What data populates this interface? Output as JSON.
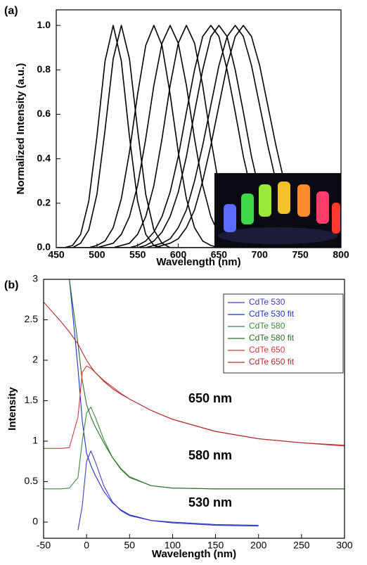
{
  "chart_data": [
    {
      "type": "line",
      "panel_label": "(a)",
      "x_label": "Wavelength (nm)",
      "y_label": "Normalized Intensity (a.u.)",
      "xlim": [
        450,
        800
      ],
      "xticks": [
        450,
        500,
        550,
        600,
        650,
        700,
        750,
        800
      ],
      "ylim": [
        0,
        1.07
      ],
      "yticks": [
        {
          "value": 0,
          "label": "0.0"
        },
        0.2,
        0.4,
        0.6,
        0.8,
        {
          "value": 1,
          "label": "1.0"
        }
      ],
      "x": [
        450,
        460,
        470,
        480,
        490,
        500,
        510,
        520,
        530,
        540,
        550,
        560,
        570,
        580,
        590,
        600,
        610,
        620,
        630,
        640,
        650,
        660,
        670,
        680,
        690,
        700,
        710,
        720,
        730,
        740,
        750,
        760,
        770,
        780,
        790,
        800
      ],
      "series": [
        {
          "color": "#000000",
          "values": [
            0,
            0,
            0.01,
            0.06,
            0.21,
            0.5,
            0.84,
            1,
            0.84,
            0.5,
            0.21,
            0.06,
            0.01,
            0,
            0,
            0,
            0,
            0,
            0,
            0,
            0,
            0,
            0,
            0,
            0,
            0,
            0,
            0,
            0,
            0,
            0,
            0,
            0,
            0,
            0,
            0
          ]
        },
        {
          "color": "#000000",
          "values": [
            0,
            0,
            0,
            0.02,
            0.08,
            0.24,
            0.53,
            0.85,
            1,
            0.85,
            0.53,
            0.24,
            0.08,
            0.02,
            0,
            0,
            0,
            0,
            0,
            0,
            0,
            0,
            0,
            0,
            0,
            0,
            0,
            0,
            0,
            0,
            0,
            0,
            0,
            0,
            0,
            0
          ]
        },
        {
          "color": "#000000",
          "values": [
            0,
            0,
            0,
            0,
            0,
            0.01,
            0.03,
            0.09,
            0.22,
            0.43,
            0.69,
            0.91,
            1,
            0.91,
            0.69,
            0.43,
            0.22,
            0.09,
            0.03,
            0.01,
            0,
            0,
            0,
            0,
            0,
            0,
            0,
            0,
            0,
            0,
            0,
            0,
            0,
            0,
            0,
            0
          ]
        },
        {
          "color": "#000000",
          "values": [
            0,
            0,
            0,
            0,
            0,
            0,
            0.01,
            0.02,
            0.06,
            0.14,
            0.28,
            0.49,
            0.73,
            0.92,
            1,
            0.92,
            0.73,
            0.49,
            0.28,
            0.14,
            0.06,
            0.02,
            0.01,
            0,
            0,
            0,
            0,
            0,
            0,
            0,
            0,
            0,
            0,
            0,
            0,
            0
          ]
        },
        {
          "color": "#000000",
          "values": [
            0,
            0,
            0,
            0,
            0,
            0,
            0,
            0,
            0.01,
            0.02,
            0.06,
            0.14,
            0.28,
            0.49,
            0.73,
            0.92,
            1,
            0.92,
            0.73,
            0.49,
            0.28,
            0.14,
            0.06,
            0.02,
            0.01,
            0,
            0,
            0,
            0,
            0,
            0,
            0,
            0,
            0,
            0,
            0
          ]
        },
        {
          "color": "#000000",
          "values": [
            0,
            0,
            0,
            0,
            0,
            0,
            0,
            0,
            0,
            0,
            0.01,
            0.03,
            0.07,
            0.14,
            0.25,
            0.41,
            0.61,
            0.8,
            0.95,
            1,
            0.95,
            0.8,
            0.61,
            0.41,
            0.25,
            0.14,
            0.07,
            0.03,
            0.01,
            0,
            0,
            0,
            0,
            0,
            0,
            0
          ]
        },
        {
          "color": "#000000",
          "values": [
            0,
            0,
            0,
            0,
            0,
            0,
            0,
            0,
            0,
            0,
            0,
            0.01,
            0.03,
            0.07,
            0.14,
            0.25,
            0.41,
            0.61,
            0.8,
            0.95,
            1,
            0.95,
            0.8,
            0.61,
            0.41,
            0.25,
            0.14,
            0.07,
            0.03,
            0.01,
            0,
            0,
            0,
            0,
            0,
            0
          ]
        },
        {
          "color": "#000000",
          "values": [
            0,
            0,
            0,
            0,
            0,
            0,
            0,
            0,
            0,
            0,
            0,
            0,
            0.01,
            0.02,
            0.04,
            0.09,
            0.17,
            0.3,
            0.46,
            0.64,
            0.82,
            0.95,
            1,
            0.95,
            0.82,
            0.64,
            0.46,
            0.3,
            0.17,
            0.09,
            0.04,
            0.02,
            0.01,
            0,
            0,
            0
          ]
        },
        {
          "color": "#000000",
          "values": [
            0,
            0,
            0,
            0,
            0,
            0,
            0,
            0,
            0,
            0,
            0,
            0,
            0,
            0.01,
            0.02,
            0.04,
            0.09,
            0.17,
            0.3,
            0.46,
            0.64,
            0.82,
            0.95,
            1,
            0.95,
            0.82,
            0.64,
            0.46,
            0.3,
            0.17,
            0.09,
            0.04,
            0.02,
            0.01,
            0,
            0
          ]
        }
      ]
    },
    {
      "type": "line",
      "panel_label": "(b)",
      "x_label": "Wavelength (nm)",
      "y_label": "Intensity",
      "xlim": [
        -50,
        300
      ],
      "xticks": [
        -50,
        0,
        50,
        100,
        150,
        200,
        250,
        300
      ],
      "ylim": [
        -0.2,
        3
      ],
      "yticks": [
        0,
        0.5,
        1,
        1.5,
        2,
        2.5,
        3
      ],
      "legend": "upper right",
      "annotations": [
        "650 nm",
        "580 nm",
        "530 nm"
      ],
      "x": [
        -50,
        -40,
        -30,
        -20,
        -10,
        -5,
        0,
        5,
        10,
        20,
        30,
        40,
        50,
        75,
        100,
        150,
        200,
        250,
        300
      ],
      "series": [
        {
          "name": "CdTe 530",
          "color": "#3a3fb8",
          "values": [
            null,
            null,
            null,
            null,
            -0.1,
            0.2,
            0.75,
            0.88,
            0.75,
            0.45,
            0.25,
            0.14,
            0.08,
            0.02,
            0,
            -0.03,
            -0.04,
            null,
            null
          ]
        },
        {
          "name": "CdTe 530 fit",
          "color": "#2230c8",
          "values": [
            null,
            null,
            null,
            3,
            1.9,
            1.25,
            0.85,
            0.7,
            0.58,
            0.38,
            0.24,
            0.15,
            0.09,
            0.02,
            -0.01,
            -0.04,
            -0.05,
            null,
            null
          ]
        },
        {
          "name": "CdTe 580",
          "color": "#3c8a3c",
          "values": [
            0.41,
            0.41,
            0.41,
            0.42,
            0.55,
            1,
            1.35,
            1.42,
            1.3,
            1.02,
            0.8,
            0.65,
            0.55,
            0.45,
            0.42,
            0.41,
            0.41,
            0.41,
            0.41
          ]
        },
        {
          "name": "CdTe 580 fit",
          "color": "#2a6f2a",
          "values": [
            null,
            null,
            null,
            3,
            2.2,
            1.75,
            1.45,
            1.3,
            1.18,
            0.98,
            0.8,
            0.66,
            0.56,
            0.45,
            0.42,
            0.41,
            0.41,
            0.41,
            0.41
          ]
        },
        {
          "name": "CdTe 650",
          "color": "#d03a3a",
          "values": [
            0.91,
            0.91,
            0.91,
            0.92,
            1.3,
            1.85,
            1.93,
            1.9,
            1.85,
            1.75,
            1.67,
            1.59,
            1.52,
            1.38,
            1.27,
            1.12,
            1.03,
            0.98,
            0.94
          ]
        },
        {
          "name": "CdTe 650 fit",
          "color": "#b52a2a",
          "values": [
            2.72,
            2.6,
            2.48,
            2.35,
            2.2,
            2.1,
            2,
            1.92,
            1.85,
            1.74,
            1.65,
            1.58,
            1.52,
            1.38,
            1.27,
            1.12,
            1.03,
            0.98,
            0.95
          ]
        }
      ]
    }
  ]
}
